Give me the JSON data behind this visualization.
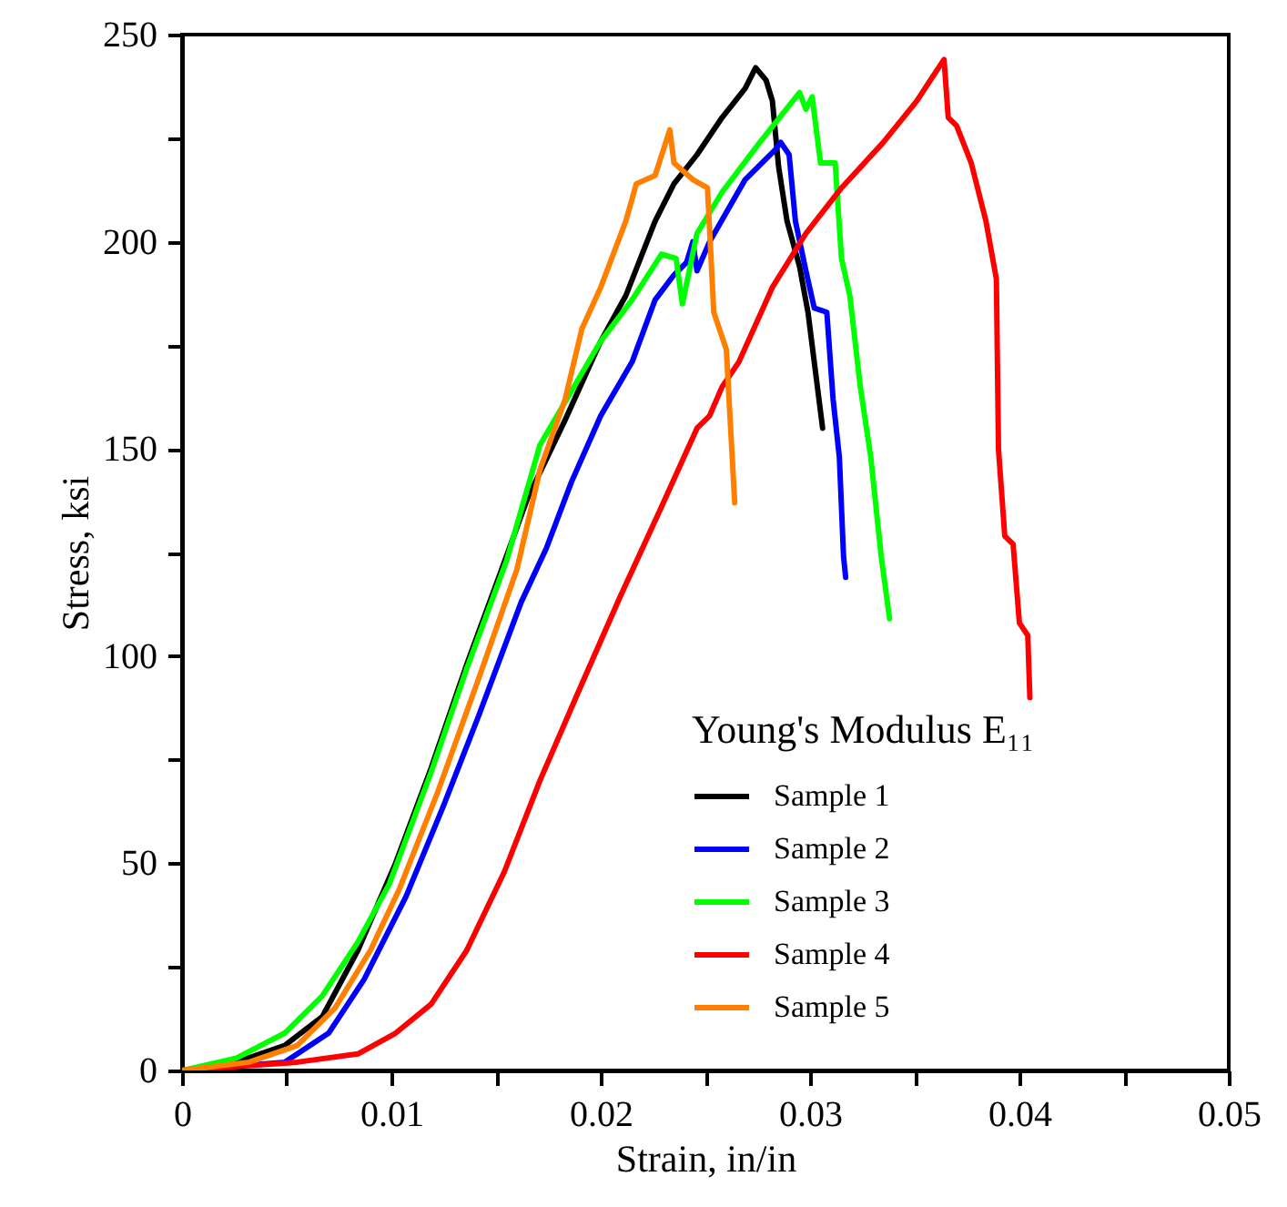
{
  "chart_data": {
    "type": "line",
    "xlabel": "Strain, in/in",
    "ylabel": "Stress, ksi",
    "legend_title": "Young's Modulus E₁₁",
    "legend": "bottom right",
    "grid": false,
    "line_style": "solid",
    "marker": "none",
    "xlim": [
      0,
      0.05
    ],
    "ylim": [
      0,
      250
    ],
    "xticks": [
      0,
      {
        "value": 0.005,
        "label": null
      },
      0.01,
      {
        "value": 0.015,
        "label": null
      },
      0.02,
      {
        "value": 0.025,
        "label": null
      },
      0.03,
      {
        "value": 0.035,
        "label": null
      },
      0.04,
      {
        "value": 0.045,
        "label": null
      },
      0.05
    ],
    "yticks": [
      0,
      {
        "value": 25,
        "label": null
      },
      50,
      {
        "value": 75,
        "label": null
      },
      100,
      {
        "value": 125,
        "label": null
      },
      150,
      {
        "value": 175,
        "label": null
      },
      200,
      {
        "value": 225,
        "label": null
      },
      250
    ],
    "series": [
      {
        "name": "Sample 1",
        "color": "#000000",
        "x": [
          0,
          0.0026,
          0.0049,
          0.0067,
          0.0084,
          0.0102,
          0.0119,
          0.0136,
          0.0152,
          0.0165,
          0.0183,
          0.02,
          0.0212,
          0.0226,
          0.0235,
          0.0246,
          0.0258,
          0.0269,
          0.0274,
          0.0279,
          0.0282,
          0.0285,
          0.0289,
          0.0295,
          0.0299,
          0.0302,
          0.0306
        ],
        "values": [
          0,
          2,
          6,
          13,
          29,
          50,
          73,
          98,
          120,
          138,
          157,
          176,
          187,
          205,
          214,
          221,
          230,
          237,
          242,
          239,
          234,
          218,
          205,
          194,
          183,
          171,
          155
        ]
      },
      {
        "name": "Sample 2",
        "color": "#0000ff",
        "x": [
          0,
          0.0049,
          0.007,
          0.0087,
          0.0107,
          0.0125,
          0.0142,
          0.0162,
          0.0174,
          0.0186,
          0.02,
          0.0215,
          0.0226,
          0.0235,
          0.0241,
          0.0244,
          0.0246,
          0.0252,
          0.0269,
          0.0283,
          0.0286,
          0.029,
          0.0293,
          0.0298,
          0.0302,
          0.0308,
          0.0311,
          0.0314,
          0.0316,
          0.0317
        ],
        "values": [
          0,
          2,
          9,
          22,
          42,
          64,
          86,
          113,
          126,
          142,
          158,
          171,
          186,
          192,
          195,
          200,
          193,
          200,
          215,
          222,
          224,
          221,
          205,
          193,
          184,
          183,
          162,
          148,
          124,
          119
        ]
      },
      {
        "name": "Sample 3",
        "color": "#00ff00",
        "x": [
          0,
          0.0026,
          0.0049,
          0.0067,
          0.0084,
          0.0099,
          0.0119,
          0.0136,
          0.0155,
          0.0171,
          0.02,
          0.0215,
          0.0229,
          0.0236,
          0.0239,
          0.0246,
          0.0258,
          0.0276,
          0.0295,
          0.0298,
          0.0301,
          0.0305,
          0.0312,
          0.0315,
          0.0319,
          0.0324,
          0.0329,
          0.0334,
          0.0338
        ],
        "values": [
          0,
          3,
          9,
          18,
          31,
          45,
          72,
          97,
          123,
          151,
          176,
          186,
          197,
          196,
          185,
          202,
          212,
          224,
          236,
          232,
          235,
          219,
          219,
          196,
          187,
          165,
          148,
          124,
          109
        ]
      },
      {
        "name": "Sample 4",
        "color": "#ff0000",
        "x": [
          0,
          0.0055,
          0.0084,
          0.0102,
          0.0119,
          0.0136,
          0.0154,
          0.0171,
          0.0189,
          0.0209,
          0.0229,
          0.0246,
          0.0252,
          0.0258,
          0.0266,
          0.0282,
          0.0298,
          0.0315,
          0.0335,
          0.0351,
          0.0364,
          0.0366,
          0.037,
          0.0377,
          0.0384,
          0.0389,
          0.039,
          0.0393,
          0.0397,
          0.04,
          0.0404,
          0.0405
        ],
        "values": [
          0,
          2,
          4,
          9,
          16,
          29,
          48,
          70,
          91,
          114,
          136,
          155,
          158,
          165,
          171,
          189,
          202,
          213,
          224,
          234,
          244,
          230,
          228,
          219,
          205,
          191,
          150,
          129,
          127,
          108,
          105,
          90
        ]
      },
      {
        "name": "Sample 5",
        "color": "#ff7f00",
        "x": [
          0,
          0.0032,
          0.0055,
          0.0073,
          0.009,
          0.0104,
          0.0122,
          0.0142,
          0.016,
          0.0171,
          0.0183,
          0.0191,
          0.02,
          0.0212,
          0.0217,
          0.0226,
          0.0233,
          0.0235,
          0.0244,
          0.0251,
          0.0254,
          0.026,
          0.0264
        ],
        "values": [
          0,
          2,
          6,
          15,
          29,
          44,
          67,
          95,
          121,
          145,
          162,
          179,
          189,
          205,
          214,
          216,
          227,
          219,
          215,
          213,
          183,
          174,
          137
        ]
      }
    ]
  }
}
